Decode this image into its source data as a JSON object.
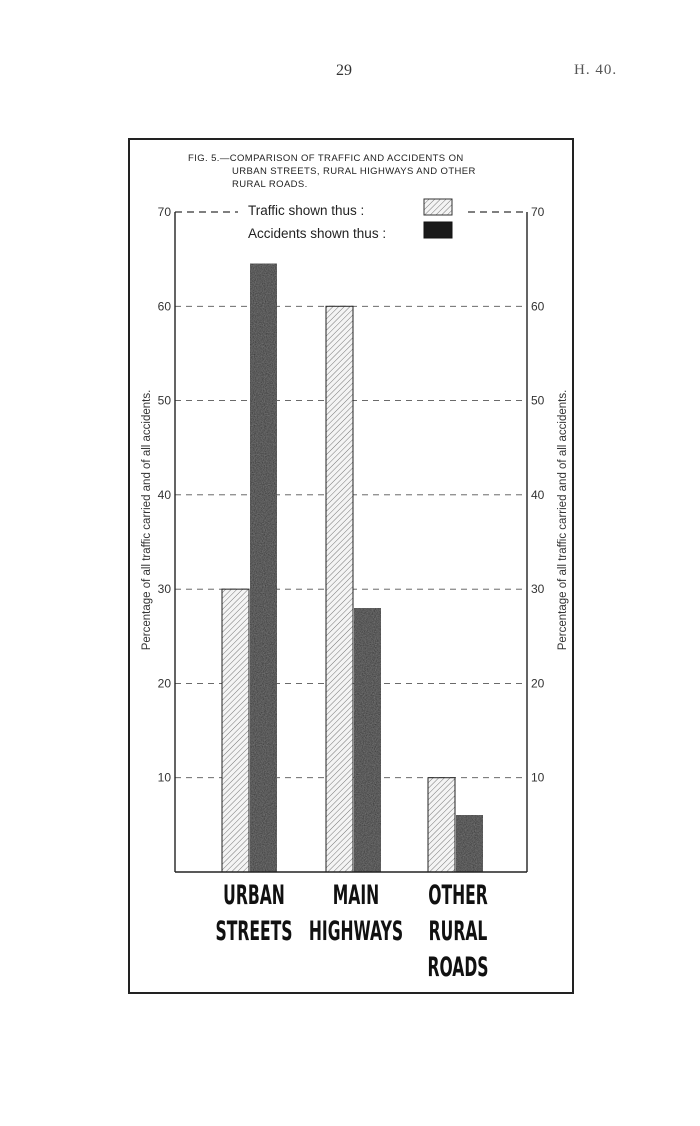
{
  "page": {
    "number": "29",
    "reference": "H. 40."
  },
  "figure": {
    "title_line1": "FIG. 5.—COMPARISON OF TRAFFIC AND ACCIDENTS ON",
    "title_line2": "URBAN STREETS, RURAL HIGHWAYS AND OTHER",
    "title_line3": "RURAL ROADS."
  },
  "legend": {
    "traffic_label": "Traffic shown thus :",
    "accidents_label": "Accidents shown thus :"
  },
  "chart_data": {
    "type": "bar",
    "title": "FIG. 5.—COMPARISON OF TRAFFIC AND ACCIDENTS ON URBAN STREETS, RURAL HIGHWAYS AND OTHER RURAL ROADS.",
    "categories": [
      [
        "URBAN",
        "STREETS"
      ],
      [
        "MAIN",
        "HIGHWAYS"
      ],
      [
        "OTHER",
        "RURAL",
        "ROADS"
      ]
    ],
    "series": [
      {
        "name": "Traffic shown thus :",
        "values": [
          30,
          60,
          10
        ],
        "pattern": "hatched"
      },
      {
        "name": "Accidents shown thus :",
        "values": [
          64.5,
          28,
          6
        ],
        "pattern": "solid-dark"
      }
    ],
    "ylabel": "Percentage of all traffic carried and of all accidents.",
    "ylim": [
      0,
      70
    ],
    "yticks": [
      10,
      20,
      30,
      40,
      50,
      60,
      70
    ],
    "ytick_labels": [
      "10",
      "20",
      "30",
      "40",
      "50",
      "60",
      "70"
    ],
    "grid": "dashed-horizontal",
    "secondary_y_axis": true,
    "legend_position": "top"
  }
}
